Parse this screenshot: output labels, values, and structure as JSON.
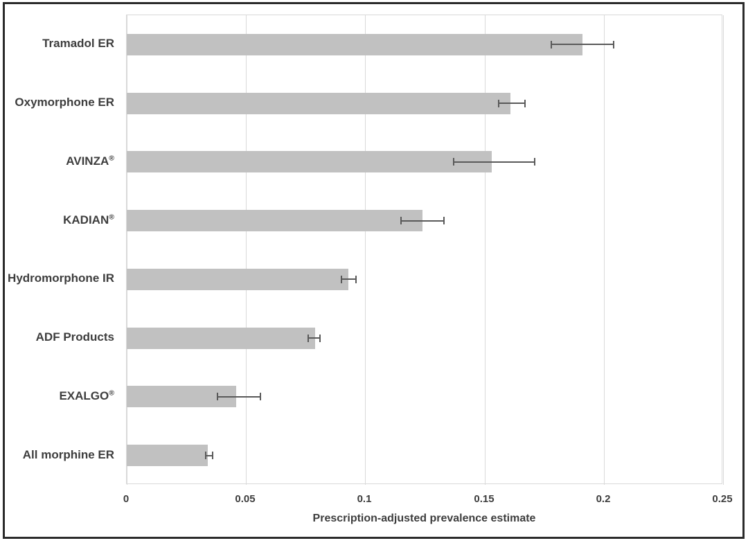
{
  "chart_data": {
    "type": "bar",
    "orientation": "horizontal",
    "title": "",
    "xlabel": "Prescription-adjusted prevalence estimate",
    "ylabel": "",
    "xlim": [
      0,
      0.25
    ],
    "xticks": [
      0,
      0.05,
      0.1,
      0.15,
      0.2,
      0.25
    ],
    "xtick_labels": [
      "0",
      "0.05",
      "0.1",
      "0.15",
      "0.2",
      "0.25"
    ],
    "grid": true,
    "legend": false,
    "categories": [
      "Tramadol ER",
      "Oxymorphone ER",
      "AVINZA®",
      "KADIAN®",
      "Hydromorphone IR",
      "ADF Products",
      "EXALGO®",
      "All morphine ER"
    ],
    "values": [
      0.191,
      0.161,
      0.153,
      0.124,
      0.093,
      0.079,
      0.046,
      0.034
    ],
    "error_low": [
      0.178,
      0.156,
      0.137,
      0.115,
      0.09,
      0.076,
      0.038,
      0.033
    ],
    "error_high": [
      0.204,
      0.167,
      0.171,
      0.133,
      0.096,
      0.081,
      0.056,
      0.036
    ],
    "colors": {
      "bar_fill": "#c1c1c1",
      "error_bar": "#595959",
      "gridline": "#d9d9d9",
      "text": "#3d3d3d",
      "frame_border": "#2b2b2b",
      "background": "#ffffff"
    }
  }
}
